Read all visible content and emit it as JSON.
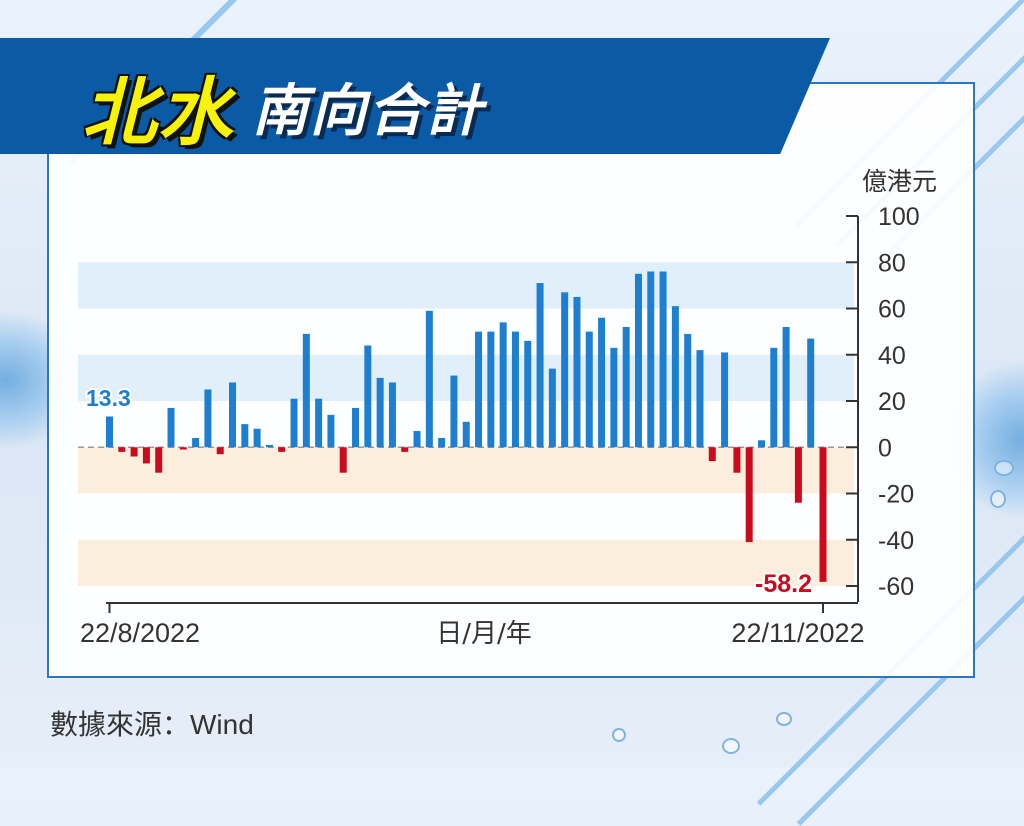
{
  "header": {
    "title_main": "北水",
    "title_sub": "南向合計"
  },
  "source": "數據來源：Wind",
  "colors": {
    "positive": "#1e7fd0",
    "negative": "#cc0a1e",
    "band_positive": "#e1effa",
    "band_negative": "#fbeedd",
    "axis": "#333333"
  },
  "chart_data": {
    "type": "bar",
    "title": "",
    "xlabel": "日/月/年",
    "ylabel": "億港元",
    "ylim": [
      -60,
      100
    ],
    "yticks": [
      100,
      80,
      60,
      40,
      20,
      0,
      -20,
      -40,
      -60
    ],
    "x_start_label": "22/8/2022",
    "x_end_label": "22/11/2022",
    "annotations": [
      {
        "text": "13.3",
        "index": 0
      },
      {
        "text": "-58.2",
        "index": 59
      }
    ],
    "values": [
      13.3,
      -2,
      -4,
      -7,
      -11,
      17,
      -1,
      4,
      25,
      -3,
      28,
      10,
      8,
      1,
      -2,
      21,
      49,
      21,
      14,
      -11,
      17,
      44,
      30,
      28,
      -2,
      7,
      59,
      4,
      31,
      11,
      50,
      50,
      54,
      50,
      46,
      71,
      34,
      67,
      65,
      50,
      56,
      43,
      52,
      75,
      76,
      76,
      61,
      49,
      42,
      -6,
      41,
      -11,
      -41,
      3,
      43,
      52,
      -24,
      47,
      -58.2
    ]
  }
}
